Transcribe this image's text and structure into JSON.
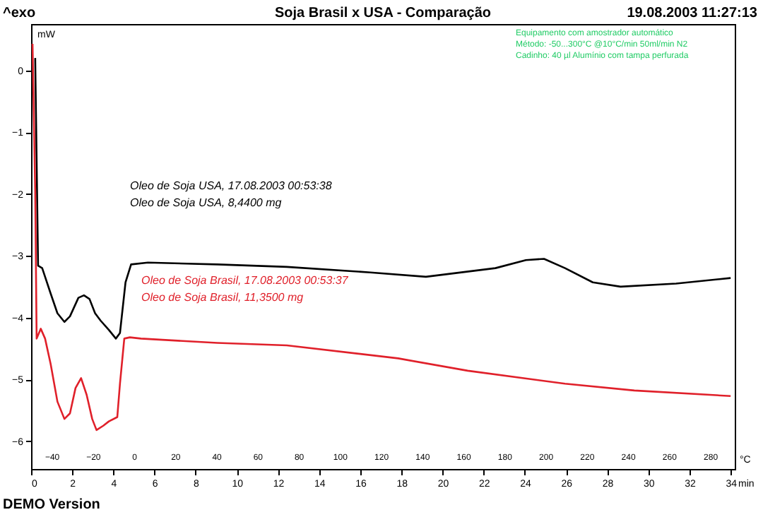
{
  "chart_data": {
    "type": "line",
    "title": "Soja Brasil x USA - Comparação",
    "xlabel": "min",
    "ylabel": "mW",
    "x2label": "°C",
    "xlim": [
      0,
      34.2
    ],
    "xticks": [
      0,
      2,
      4,
      6,
      8,
      10,
      12,
      14,
      16,
      18,
      20,
      22,
      24,
      26,
      28,
      30,
      32,
      34
    ],
    "x2lim": [
      -50,
      292
    ],
    "x2ticks": [
      -40,
      -20,
      0,
      20,
      40,
      60,
      80,
      100,
      120,
      140,
      160,
      180,
      200,
      220,
      240,
      260,
      280
    ],
    "ylim": [
      -6.45,
      0.75
    ],
    "yticks": [
      -6,
      -5,
      -4,
      -3,
      -2,
      -1,
      0
    ],
    "grid": false,
    "line_style": "solid",
    "marker": "none",
    "series": [
      {
        "color": "#000000",
        "x": [
          0.2,
          0.34,
          0.54,
          0.95,
          1.28,
          1.62,
          1.89,
          2.3,
          2.57,
          2.84,
          3.11,
          3.38,
          3.78,
          4.12,
          4.32,
          4.59,
          4.86,
          5.68,
          9.05,
          12.43,
          16.49,
          19.19,
          22.57,
          24.05,
          24.93,
          25.95,
          27.3,
          28.65,
          31.35,
          34.0
        ],
        "values": [
          0.2,
          -3.16,
          -3.2,
          -3.61,
          -3.93,
          -4.07,
          -3.98,
          -3.68,
          -3.64,
          -3.7,
          -3.93,
          -4.05,
          -4.2,
          -4.34,
          -4.25,
          -3.43,
          -3.14,
          -3.11,
          -3.14,
          -3.18,
          -3.27,
          -3.34,
          -3.2,
          -3.07,
          -3.05,
          -3.2,
          -3.43,
          -3.5,
          -3.45,
          -3.36
        ]
      },
      {
        "color": "#e0202a",
        "x": [
          0.07,
          0.2,
          0.27,
          0.47,
          0.68,
          0.95,
          1.28,
          1.62,
          1.89,
          2.16,
          2.43,
          2.7,
          2.97,
          3.18,
          3.51,
          3.78,
          4.19,
          4.32,
          4.53,
          4.8,
          5.34,
          9.05,
          12.43,
          17.84,
          21.22,
          25.95,
          29.32,
          34.0
        ],
        "values": [
          0.43,
          -1.95,
          -4.34,
          -4.18,
          -4.34,
          -4.75,
          -5.36,
          -5.64,
          -5.55,
          -5.14,
          -4.98,
          -5.25,
          -5.64,
          -5.82,
          -5.75,
          -5.68,
          -5.61,
          -5.07,
          -4.34,
          -4.32,
          -4.34,
          -4.41,
          -4.45,
          -4.66,
          -4.86,
          -5.07,
          -5.18,
          -5.27
        ]
      }
    ],
    "annotations": [
      "Oleo de Soja USA, 17.08.2003 00:53:38",
      "Oleo de Soja USA, 8,4400 mg",
      "Oleo de Soja Brasil, 17.08.2003 00:53:37",
      "Oleo de Soja Brasil, 11,3500 mg",
      "^exo",
      "19.08.2003 11:27:13",
      "Equipamento com amostrador automático",
      "Método: -50...300°C @10°C/min 50ml/min N2",
      "Cadinho: 40 µl Alumínio com tampa perfurada",
      "DEMO Version"
    ]
  }
}
